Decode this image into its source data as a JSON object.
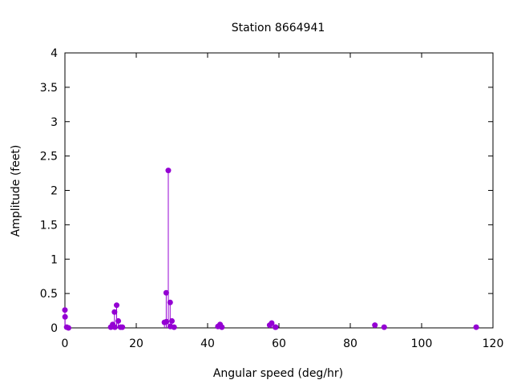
{
  "chart_data": {
    "type": "scatter",
    "style": "impulses-with-points",
    "title": "Station 8664941",
    "xlabel": "Angular speed (deg/hr)",
    "ylabel": "Amplitude (feet)",
    "xlim": [
      0,
      120
    ],
    "ylim": [
      0,
      4
    ],
    "xticks": [
      "0",
      "20",
      "40",
      "60",
      "80",
      "100",
      "120"
    ],
    "yticks": [
      "0",
      "0.5",
      "1",
      "1.5",
      "2",
      "2.5",
      "3",
      "3.5",
      "4"
    ],
    "grid": false,
    "color": "#9400d3",
    "points": [
      [
        0.0,
        0.26
      ],
      [
        0.04,
        0.16
      ],
      [
        0.5,
        0.01
      ],
      [
        1.0,
        0.0
      ],
      [
        12.85,
        0.01
      ],
      [
        13.4,
        0.05
      ],
      [
        13.9,
        0.23
      ],
      [
        14.0,
        0.01
      ],
      [
        14.5,
        0.33
      ],
      [
        14.96,
        0.1
      ],
      [
        15.6,
        0.01
      ],
      [
        16.1,
        0.01
      ],
      [
        27.9,
        0.08
      ],
      [
        28.4,
        0.51
      ],
      [
        28.45,
        0.09
      ],
      [
        28.98,
        2.29
      ],
      [
        29.5,
        0.37
      ],
      [
        29.55,
        0.02
      ],
      [
        30.0,
        0.1
      ],
      [
        30.6,
        0.01
      ],
      [
        42.9,
        0.02
      ],
      [
        43.5,
        0.05
      ],
      [
        44.0,
        0.01
      ],
      [
        57.4,
        0.04
      ],
      [
        57.97,
        0.07
      ],
      [
        58.98,
        0.01
      ],
      [
        59.1,
        0.01
      ],
      [
        86.9,
        0.04
      ],
      [
        89.5,
        0.01
      ],
      [
        115.3,
        0.01
      ]
    ]
  }
}
